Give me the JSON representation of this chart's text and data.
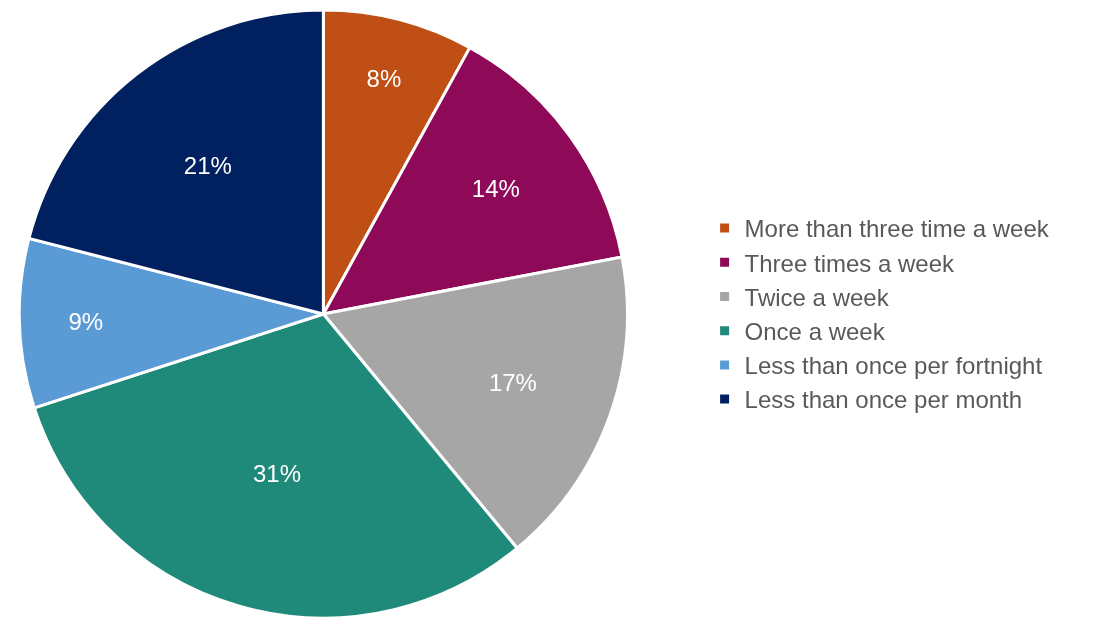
{
  "chart_data": {
    "type": "pie",
    "categories": [
      "More than three time a week",
      "Three times a week",
      "Twice a week",
      "Once a week",
      "Less than once per fortnight",
      "Less than once per month"
    ],
    "values": [
      8,
      14,
      17,
      31,
      9,
      21
    ],
    "colors": [
      "#c04f15",
      "#8e0a58",
      "#a6a6a6",
      "#1f8a7a",
      "#5b9bd5",
      "#002060"
    ],
    "value_labels": [
      "8%",
      "14%",
      "17%",
      "31%",
      "9%",
      "21%"
    ],
    "legend": "right"
  }
}
